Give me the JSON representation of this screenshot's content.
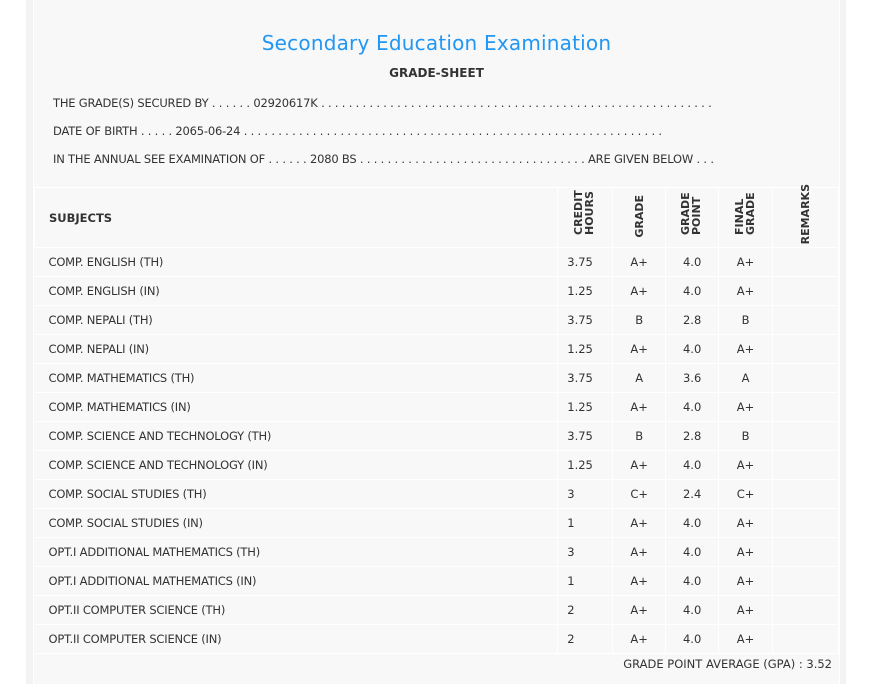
{
  "header": {
    "title": "Secondary Education Examination",
    "subtitle": "GRADE-SHEET",
    "line1": "THE GRADE(S) SECURED BY . . . . . . 02920617K . . . . . . . . . . . . . . . . . . . . . . . . . . . . . . . . . . . . . . . . . . . . . . . . . . . . . . . . .",
    "line2": "DATE OF BIRTH . . . . . 2065-06-24 . . . . . . . . . . . . . . . . . . . . . . . . . . . . . . . . . . . . . . . . . . . . . . . . . . . . . . . . . . . . .",
    "line3": "IN THE ANNUAL SEE EXAMINATION OF . . . . . . 2080 BS . . . . . . . . . . . . . . . . . . . . . . . . . . . . . . . . . ARE GIVEN BELOW . . ."
  },
  "table": {
    "columns": [
      "SUBJECTS",
      "CREDIT HOURS",
      "GRADE",
      "GRADE POINT",
      "FINAL GRADE",
      "REMARKS"
    ],
    "rows": [
      {
        "subject": "COMP. ENGLISH (TH)",
        "credit": "3.75",
        "grade": "A+",
        "gp": "4.0",
        "final": "A+",
        "remarks": ""
      },
      {
        "subject": "COMP. ENGLISH (IN)",
        "credit": "1.25",
        "grade": "A+",
        "gp": "4.0",
        "final": "A+",
        "remarks": ""
      },
      {
        "subject": "COMP. NEPALI (TH)",
        "credit": "3.75",
        "grade": "B",
        "gp": "2.8",
        "final": "B",
        "remarks": ""
      },
      {
        "subject": "COMP. NEPALI (IN)",
        "credit": "1.25",
        "grade": "A+",
        "gp": "4.0",
        "final": "A+",
        "remarks": ""
      },
      {
        "subject": "COMP. MATHEMATICS (TH)",
        "credit": "3.75",
        "grade": "A",
        "gp": "3.6",
        "final": "A",
        "remarks": ""
      },
      {
        "subject": "COMP. MATHEMATICS (IN)",
        "credit": "1.25",
        "grade": "A+",
        "gp": "4.0",
        "final": "A+",
        "remarks": ""
      },
      {
        "subject": "COMP. SCIENCE AND TECHNOLOGY (TH)",
        "credit": "3.75",
        "grade": "B",
        "gp": "2.8",
        "final": "B",
        "remarks": ""
      },
      {
        "subject": "COMP. SCIENCE AND TECHNOLOGY (IN)",
        "credit": "1.25",
        "grade": "A+",
        "gp": "4.0",
        "final": "A+",
        "remarks": ""
      },
      {
        "subject": "COMP. SOCIAL STUDIES (TH)",
        "credit": "3",
        "grade": "C+",
        "gp": "2.4",
        "final": "C+",
        "remarks": ""
      },
      {
        "subject": "COMP. SOCIAL STUDIES (IN)",
        "credit": "1",
        "grade": "A+",
        "gp": "4.0",
        "final": "A+",
        "remarks": ""
      },
      {
        "subject": "OPT.I ADDITIONAL MATHEMATICS (TH)",
        "credit": "3",
        "grade": "A+",
        "gp": "4.0",
        "final": "A+",
        "remarks": ""
      },
      {
        "subject": "OPT.I ADDITIONAL MATHEMATICS (IN)",
        "credit": "1",
        "grade": "A+",
        "gp": "4.0",
        "final": "A+",
        "remarks": ""
      },
      {
        "subject": "OPT.II COMPUTER SCIENCE (TH)",
        "credit": "2",
        "grade": "A+",
        "gp": "4.0",
        "final": "A+",
        "remarks": ""
      },
      {
        "subject": "OPT.II COMPUTER SCIENCE (IN)",
        "credit": "2",
        "grade": "A+",
        "gp": "4.0",
        "final": "A+",
        "remarks": ""
      }
    ]
  },
  "footer": {
    "gpa": "GRADE POINT AVERAGE (GPA) : 3.52"
  }
}
